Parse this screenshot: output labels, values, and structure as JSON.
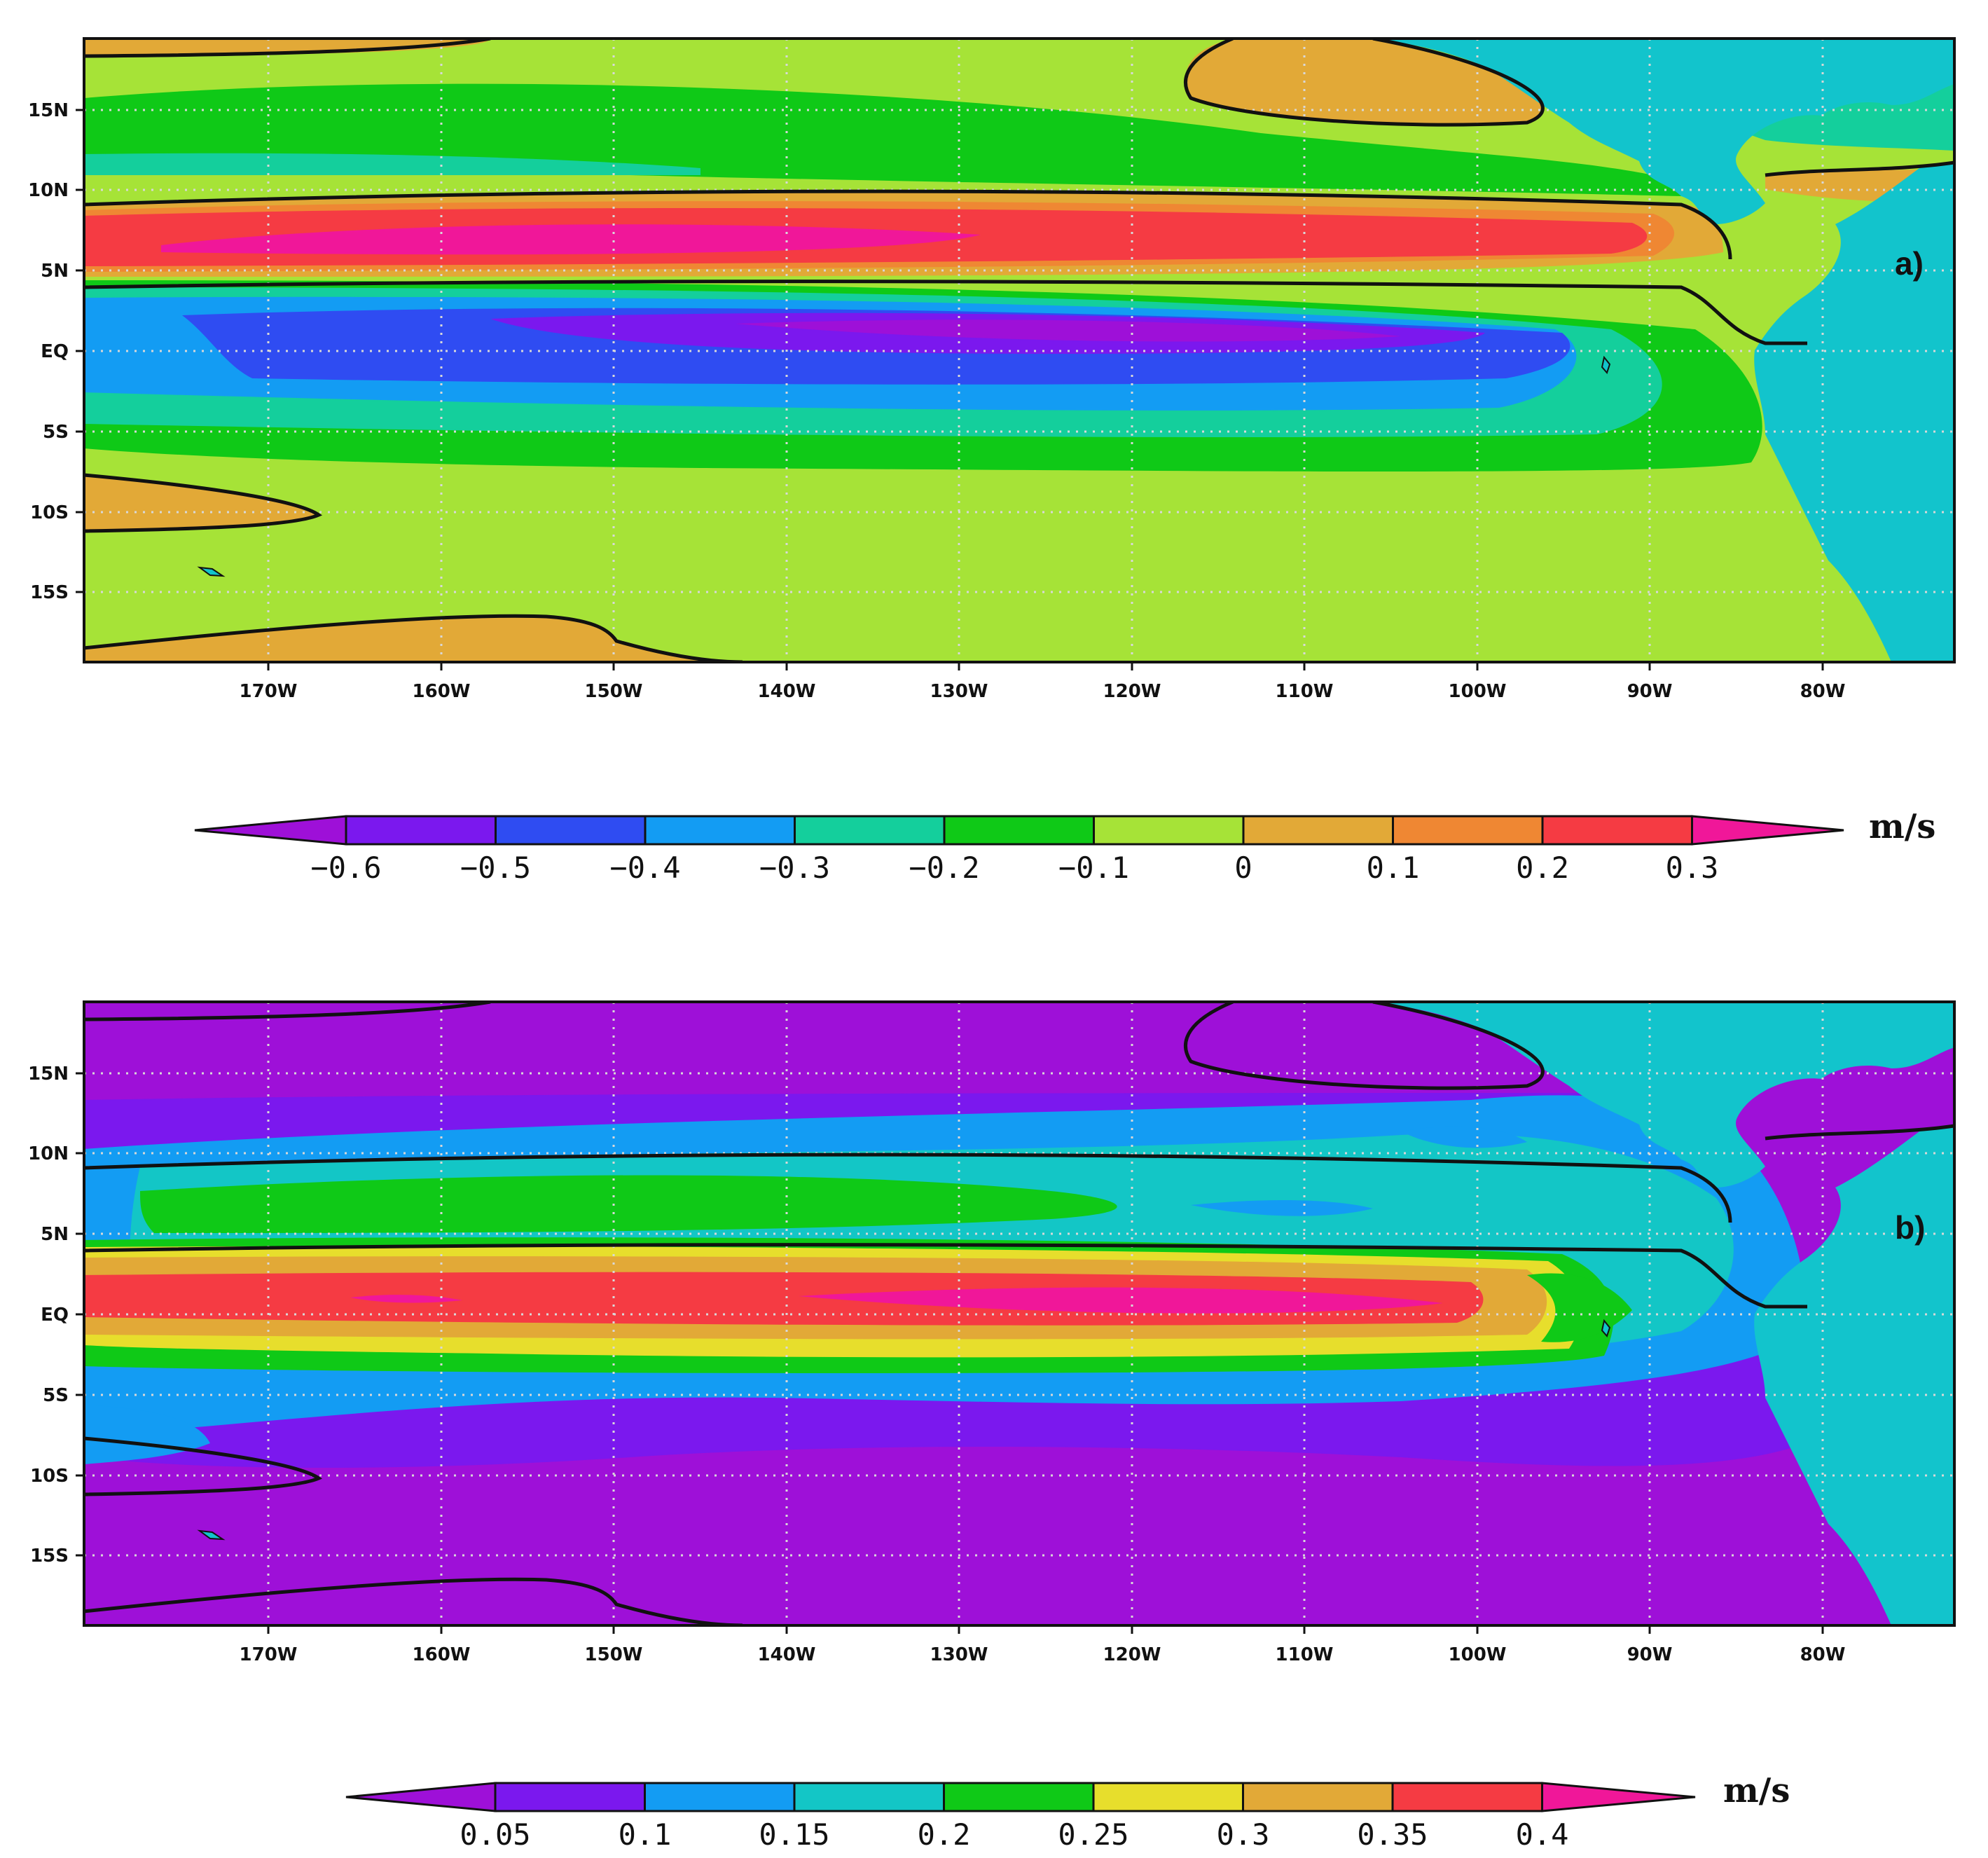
{
  "panels": [
    {
      "label": "a)",
      "unit": "m/s",
      "x_ticks": [
        "170W",
        "160W",
        "150W",
        "140W",
        "130W",
        "120W",
        "110W",
        "100W",
        "90W",
        "80W"
      ],
      "y_ticks": [
        "15N",
        "10N",
        "5N",
        "EQ",
        "5S",
        "10S",
        "15S"
      ],
      "colorbar": {
        "levels": [
          "-0.6",
          "-0.5",
          "-0.4",
          "-0.3",
          "-0.2",
          "-0.1",
          "0",
          "0.1",
          "0.2",
          "0.3"
        ],
        "colors": [
          "#9e10d8",
          "#7b18ee",
          "#2f4cf2",
          "#139cf3",
          "#14cf9c",
          "#0fc917",
          "#a6e337",
          "#e2a937",
          "#ef8733",
          "#f53b43",
          "#f01799"
        ]
      }
    },
    {
      "label": "b)",
      "unit": "m/s",
      "x_ticks": [
        "170W",
        "160W",
        "150W",
        "140W",
        "130W",
        "120W",
        "110W",
        "100W",
        "90W",
        "80W"
      ],
      "y_ticks": [
        "15N",
        "10N",
        "5N",
        "EQ",
        "5S",
        "10S",
        "15S"
      ],
      "colorbar": {
        "levels": [
          "0.05",
          "0.1",
          "0.15",
          "0.2",
          "0.25",
          "0.3",
          "0.35",
          "0.4"
        ],
        "colors": [
          "#9e10d8",
          "#7b18ee",
          "#139cf3",
          "#13c6c6",
          "#0fc917",
          "#e7de2c",
          "#e2a937",
          "#f53b43",
          "#f01799"
        ]
      }
    }
  ],
  "colors": {
    "land": "#12c4cc",
    "contour": "#111111",
    "grid": "#d8d8d8"
  }
}
